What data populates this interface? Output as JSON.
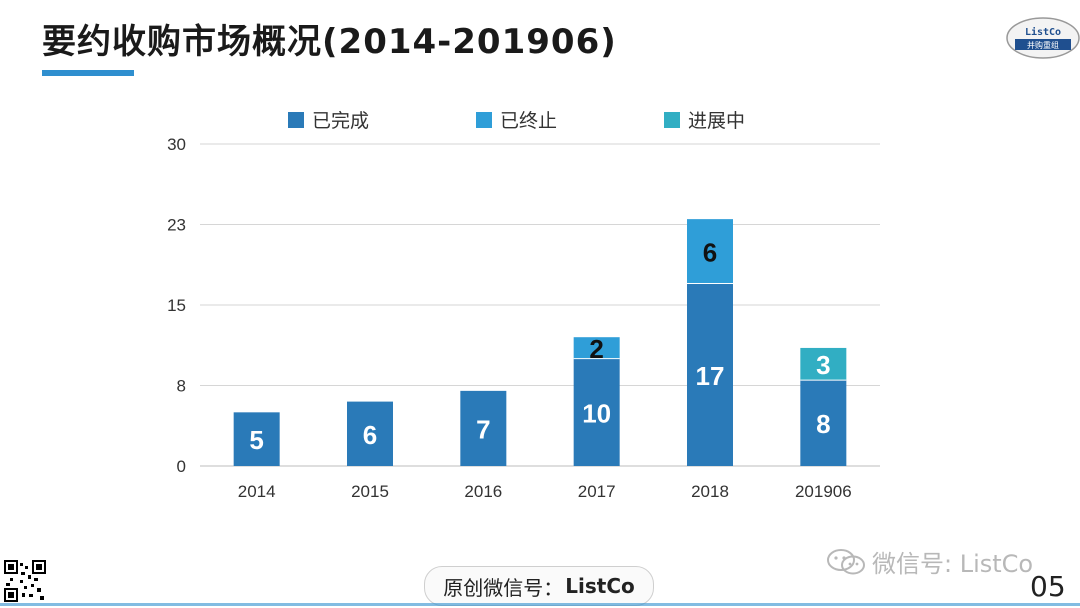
{
  "header": {
    "title": "要约收购市场概况(2014-201906)"
  },
  "logo": {
    "top": "ListCo",
    "bottom": "并购重组"
  },
  "footer": {
    "badge_prefix": "原创微信号：",
    "badge_name": "ListCo",
    "wechat": "微信号: ListCo",
    "page_number": "05"
  },
  "colors": {
    "completed": "#2a7ab8",
    "terminated": "#2f9ed8",
    "in_progress": "#31aec3",
    "accent": "#2f8fcf"
  },
  "chart_data": {
    "type": "bar",
    "stacked": true,
    "categories": [
      "2014",
      "2015",
      "2016",
      "2017",
      "2018",
      "201906"
    ],
    "series": [
      {
        "name": "已完成",
        "values": [
          5,
          6,
          7,
          10,
          17,
          8
        ]
      },
      {
        "name": "已终止",
        "values": [
          0,
          0,
          0,
          2,
          6,
          0
        ]
      },
      {
        "name": "进展中",
        "values": [
          0,
          0,
          0,
          0,
          0,
          3
        ]
      }
    ],
    "ylim": [
      0,
      30
    ],
    "yticks": [
      "0",
      "8",
      "15",
      "23",
      "30"
    ],
    "legend_position": "top",
    "grid": true
  }
}
